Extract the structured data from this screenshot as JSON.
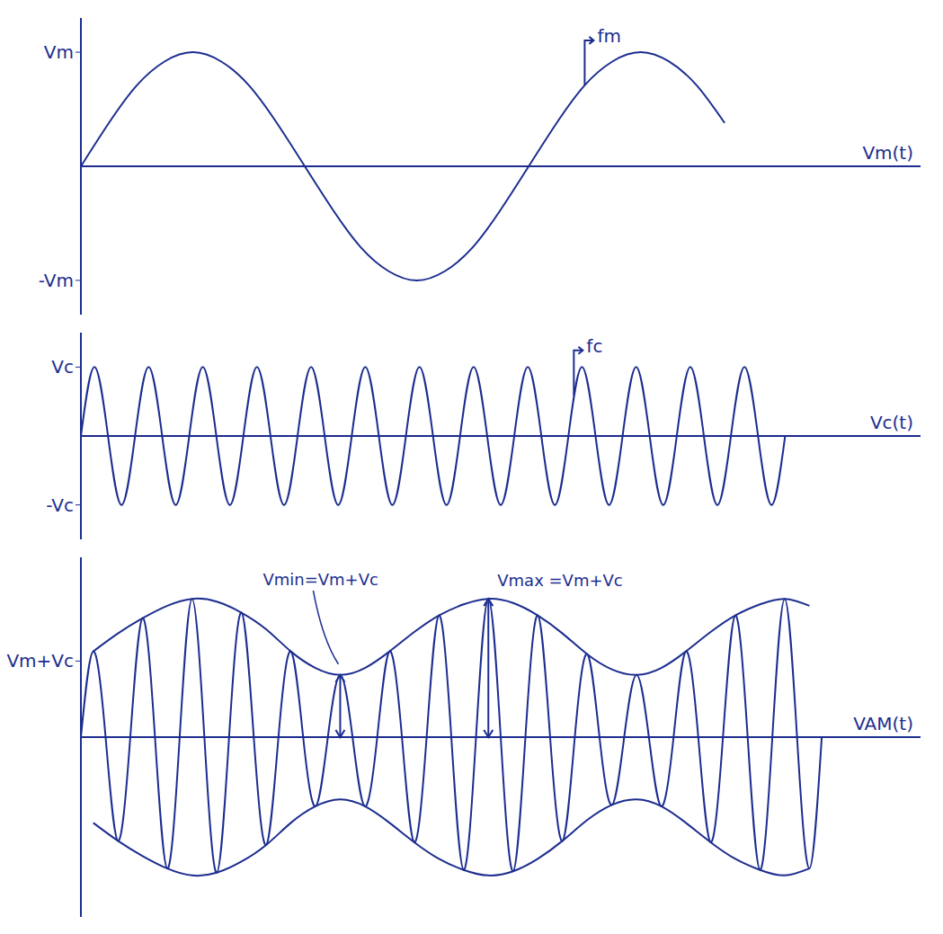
{
  "chart_data": [
    {
      "type": "line",
      "color": "#1c2d8f",
      "line_style": "smooth",
      "tick_labels": "y",
      "x_label": "Vm(t)",
      "xlim": [
        0,
        30
      ],
      "ylim": [
        -1.3,
        1.3
      ],
      "yticks": [
        {
          "value": 1,
          "label": "Vm"
        },
        {
          "value": -1,
          "label": "-Vm"
        }
      ],
      "series": [
        {
          "x": [
            0,
            1,
            2,
            3,
            4,
            5,
            6,
            7,
            8,
            9,
            10,
            11,
            12,
            13,
            14,
            15,
            16,
            17,
            18,
            19,
            20,
            21,
            22,
            23
          ],
          "values": [
            0,
            0.38,
            0.71,
            0.92,
            1,
            0.92,
            0.71,
            0.38,
            0,
            -0.38,
            -0.71,
            -0.92,
            -1,
            -0.92,
            -0.71,
            -0.38,
            0,
            0.38,
            0.71,
            0.92,
            1,
            0.92,
            0.71,
            0.38
          ]
        }
      ],
      "annotations": [
        {
          "text": "fm",
          "x": 18,
          "y": 0.71
        }
      ]
    },
    {
      "type": "line",
      "color": "#1c2d8f",
      "line_style": "smooth",
      "tick_labels": "y",
      "x_label": "Vc(t)",
      "xlim": [
        0,
        15.5
      ],
      "ylim": [
        -1.5,
        1.5
      ],
      "yticks": [
        {
          "value": 1,
          "label": "Vc"
        },
        {
          "value": -1,
          "label": "-Vc"
        }
      ],
      "series": [
        {
          "x": [
            0,
            0.25,
            0.5,
            0.75,
            1,
            1.25,
            1.5,
            1.75,
            2,
            2.25,
            2.5,
            2.75,
            3,
            3.25,
            3.5,
            3.75,
            4,
            4.25,
            4.5,
            4.75,
            5,
            5.25,
            5.5,
            5.75,
            6,
            6.25,
            6.5,
            6.75,
            7,
            7.25,
            7.5,
            7.75,
            8,
            8.25,
            8.5,
            8.75,
            9,
            9.25,
            9.5,
            9.75,
            10,
            10.25,
            10.5,
            10.75,
            11,
            11.25,
            11.5,
            11.75,
            12,
            12.25,
            12.5,
            12.75,
            13
          ],
          "values": [
            0,
            1,
            0,
            -1,
            0,
            1,
            0,
            -1,
            0,
            1,
            0,
            -1,
            0,
            1,
            0,
            -1,
            0,
            1,
            0,
            -1,
            0,
            1,
            0,
            -1,
            0,
            1,
            0,
            -1,
            0,
            1,
            0,
            -1,
            0,
            1,
            0,
            -1,
            0,
            1,
            0,
            -1,
            0,
            1,
            0,
            -1,
            0,
            1,
            0,
            -1,
            0,
            1,
            0,
            -1,
            0
          ]
        }
      ],
      "annotations": [
        {
          "text": "fc",
          "x": 9.1,
          "y": 0.59
        }
      ]
    },
    {
      "type": "line",
      "color": "#1c2d8f",
      "line_style": "smooth",
      "tick_labels": "y",
      "x_label": "VAM(t)",
      "xlim": [
        0,
        17
      ],
      "ylim": [
        -1.3,
        1.3
      ],
      "yticks": [
        {
          "value": 0.55,
          "label": "Vm+Vc"
        }
      ],
      "series": [
        {
          "x": [
            0,
            0.25,
            0.5,
            0.75,
            1,
            1.25,
            1.5,
            1.75,
            2,
            2.25,
            2.5,
            2.75,
            3,
            3.25,
            3.5,
            3.75,
            4,
            4.25,
            4.5,
            4.75,
            5,
            5.25,
            5.5,
            5.75,
            6,
            6.25,
            6.5,
            6.75,
            7,
            7.25,
            7.5,
            7.75,
            8,
            8.25,
            8.5,
            8.75,
            9,
            9.25,
            9.5,
            9.75,
            10,
            10.25,
            10.5,
            10.75,
            11,
            11.25,
            11.5,
            11.75,
            12,
            12.25,
            12.5,
            12.75,
            13,
            13.25,
            13.5,
            13.75,
            14,
            14.25,
            14.5,
            14.75,
            15
          ],
          "values": [
            0,
            0.62,
            0,
            -0.75,
            0,
            0.86,
            0,
            -0.95,
            0,
            1.0,
            0,
            -0.98,
            0,
            0.9,
            0,
            -0.78,
            0,
            0.62,
            0,
            -0.5,
            0,
            0.45,
            0,
            -0.5,
            0,
            0.62,
            0,
            -0.76,
            0,
            0.88,
            0,
            -0.96,
            0,
            1.0,
            0,
            -0.97,
            0,
            0.88,
            0,
            -0.75,
            0,
            0.6,
            0,
            -0.49,
            0,
            0.45,
            0,
            -0.5,
            0,
            0.62,
            0,
            -0.76,
            0,
            0.88,
            0,
            -0.96,
            0,
            1.0,
            0,
            -0.95,
            0
          ]
        },
        {
          "x": [
            0.25,
            0.75,
            1.25,
            1.75,
            2.25,
            2.75,
            3.25,
            3.75,
            4.25,
            4.75,
            5.25,
            5.75,
            6.25,
            6.75,
            7.25,
            7.75,
            8.25,
            8.75,
            9.25,
            9.75,
            10.25,
            10.75,
            11.25,
            11.75,
            12.25,
            12.75,
            13.25,
            13.75,
            14.25,
            14.75
          ],
          "values": [
            0.62,
            0.75,
            0.86,
            0.95,
            1.0,
            0.98,
            0.9,
            0.78,
            0.62,
            0.5,
            0.45,
            0.5,
            0.62,
            0.76,
            0.88,
            0.96,
            1.0,
            0.97,
            0.88,
            0.75,
            0.6,
            0.49,
            0.45,
            0.5,
            0.62,
            0.76,
            0.88,
            0.96,
            1.0,
            0.95
          ]
        },
        {
          "x": [
            0.25,
            0.75,
            1.25,
            1.75,
            2.25,
            2.75,
            3.25,
            3.75,
            4.25,
            4.75,
            5.25,
            5.75,
            6.25,
            6.75,
            7.25,
            7.75,
            8.25,
            8.75,
            9.25,
            9.75,
            10.25,
            10.75,
            11.25,
            11.75,
            12.25,
            12.75,
            13.25,
            13.75,
            14.25,
            14.75
          ],
          "values": [
            -0.62,
            -0.75,
            -0.86,
            -0.95,
            -1.0,
            -0.98,
            -0.9,
            -0.78,
            -0.62,
            -0.5,
            -0.45,
            -0.5,
            -0.62,
            -0.76,
            -0.88,
            -0.96,
            -1.0,
            -0.97,
            -0.88,
            -0.75,
            -0.6,
            -0.49,
            -0.45,
            -0.5,
            -0.62,
            -0.76,
            -0.88,
            -0.96,
            -1.0,
            -0.95
          ]
        }
      ],
      "measures": [
        {
          "text": "Vmin=Vm+Vc",
          "x": 5.25,
          "y": 0.45
        },
        {
          "text": "Vmax =Vm+Vc",
          "x": 8.25,
          "y": 1.0
        }
      ]
    }
  ]
}
